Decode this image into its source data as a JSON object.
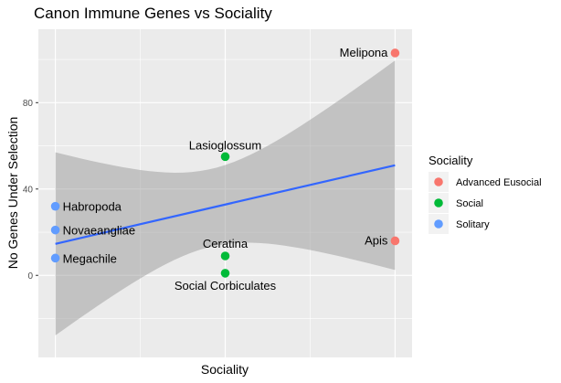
{
  "chart_data": {
    "type": "scatter",
    "title": "Canon Immune Genes vs Sociality",
    "xlabel": "Sociality",
    "ylabel": "No Genes Under Selection",
    "xlim": [
      0.9,
      3.1
    ],
    "ylim": [
      -38,
      114
    ],
    "yticks": [
      0,
      40,
      80
    ],
    "x_ticks_shown": false,
    "grid": true,
    "legend": {
      "title": "Sociality",
      "position": "right",
      "entries": [
        {
          "label": "Advanced Eusocial",
          "color": "#F8766D"
        },
        {
          "label": "Social",
          "color": "#00BA38"
        },
        {
          "label": "Solitary",
          "color": "#619CFF"
        }
      ]
    },
    "points": [
      {
        "label": "Melipona",
        "x": 3,
        "y": 103,
        "group": "Advanced Eusocial"
      },
      {
        "label": "Apis",
        "x": 3,
        "y": 16,
        "group": "Advanced Eusocial"
      },
      {
        "label": "Lasioglossum",
        "x": 2,
        "y": 55,
        "group": "Social"
      },
      {
        "label": "Ceratina",
        "x": 2,
        "y": 9,
        "group": "Social"
      },
      {
        "label": "Social Corbiculates",
        "x": 2,
        "y": 1,
        "group": "Social"
      },
      {
        "label": "Habropoda",
        "x": 1,
        "y": 32,
        "group": "Solitary"
      },
      {
        "label": "Novaeangliae",
        "x": 1,
        "y": 21,
        "group": "Solitary"
      },
      {
        "label": "Megachile",
        "x": 1,
        "y": 8,
        "group": "Solitary"
      }
    ],
    "regression": {
      "x": [
        1,
        3
      ],
      "y": [
        14.6,
        51.0
      ],
      "ci_upper": [
        57,
        101
      ],
      "ci_lower": [
        -27.5,
        1.5
      ],
      "color": "#3366FF"
    }
  }
}
